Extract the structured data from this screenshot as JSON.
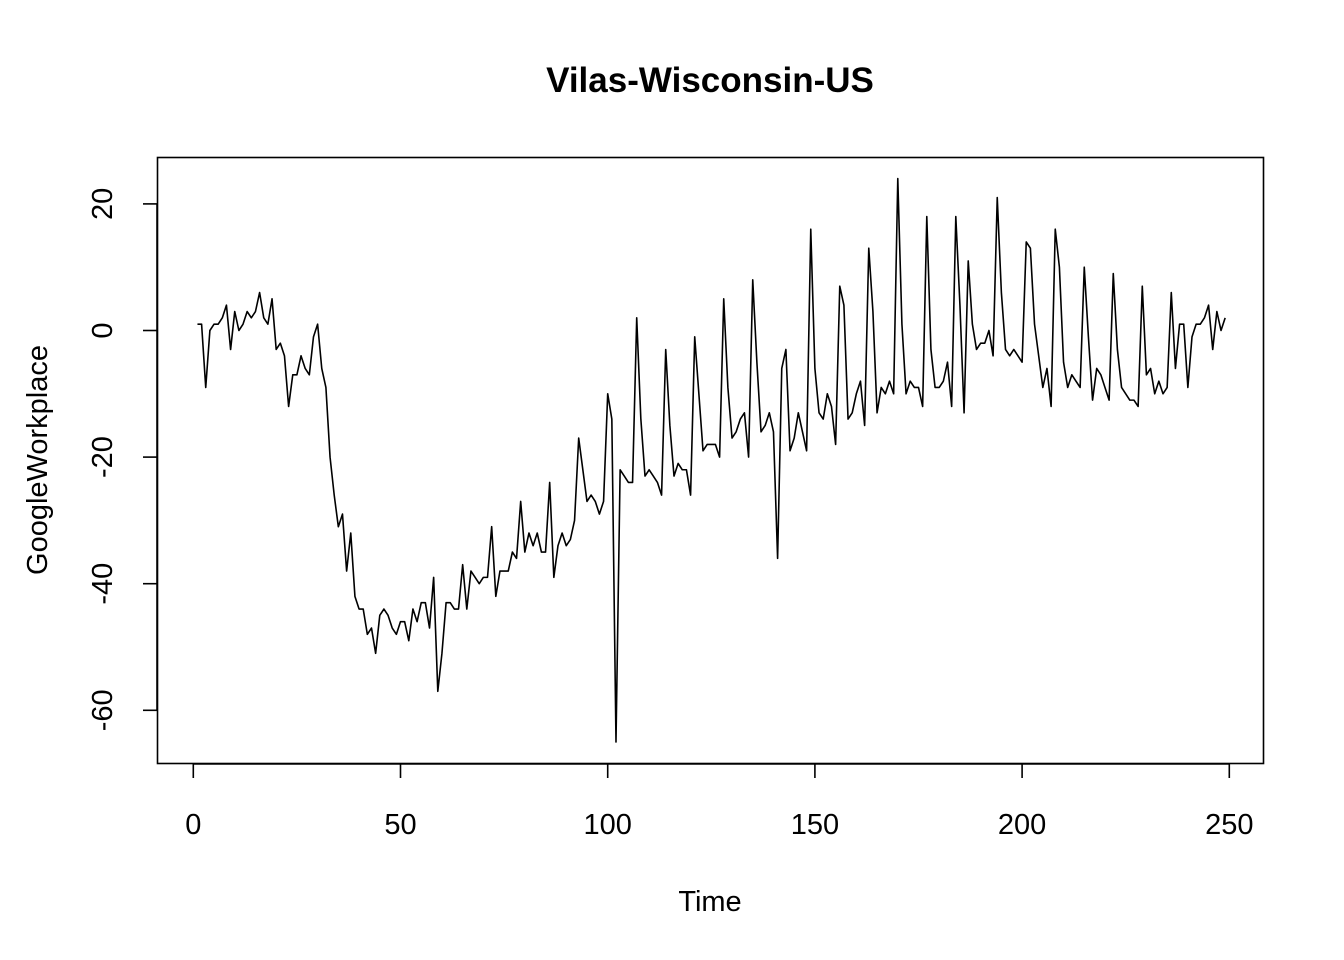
{
  "chart_data": {
    "type": "line",
    "title": "Vilas-Wisconsin-US",
    "xlabel": "Time",
    "ylabel": "GoogleWorkplace",
    "xlim": [
      1,
      248
    ],
    "ylim": [
      -65,
      24
    ],
    "x_ticks": [
      0,
      50,
      100,
      150,
      200,
      250
    ],
    "y_ticks": [
      -60,
      -40,
      -20,
      0,
      20
    ],
    "grid": false,
    "series": [
      {
        "values": [
          1,
          1,
          -9,
          0,
          1,
          1,
          2,
          4,
          -3,
          3,
          0,
          1,
          3,
          2,
          3,
          6,
          2,
          1,
          5,
          -3,
          -2,
          -4,
          -12,
          -7,
          -7,
          -4,
          -6,
          -7,
          -1,
          1,
          -6,
          -9,
          -20,
          -26,
          -31,
          -29,
          -38,
          -32,
          -42,
          -44,
          -44,
          -48,
          -47,
          -51,
          -45,
          -44,
          -45,
          -47,
          -48,
          -46,
          -46,
          -49,
          -44,
          -46,
          -43,
          -43,
          -47,
          -39,
          -57,
          -51,
          -43,
          -43,
          -44,
          -44,
          -37,
          -44,
          -38,
          -39,
          -40,
          -39,
          -39,
          -31,
          -42,
          -38,
          -38,
          -38,
          -35,
          -36,
          -27,
          -35,
          -32,
          -34,
          -32,
          -35,
          -35,
          -24,
          -39,
          -34,
          -32,
          -34,
          -33,
          -30,
          -17,
          -22,
          -27,
          -26,
          -27,
          -29,
          -27,
          -10,
          -14,
          -65,
          -22,
          -23,
          -24,
          -24,
          2,
          -14,
          -23,
          -22,
          -23,
          -24,
          -26,
          -3,
          -15,
          -23,
          -21,
          -22,
          -22,
          -26,
          -1,
          -10,
          -19,
          -18,
          -18,
          -18,
          -20,
          5,
          -9,
          -17,
          -16,
          -14,
          -13,
          -20,
          8,
          -5,
          -16,
          -15,
          -13,
          -16,
          -36,
          -6,
          -3,
          -19,
          -17,
          -13,
          -16,
          -19,
          16,
          -6,
          -13,
          -14,
          -10,
          -12,
          -18,
          7,
          4,
          -14,
          -13,
          -10,
          -8,
          -15,
          13,
          3,
          -13,
          -9,
          -10,
          -8,
          -10,
          24,
          1,
          -10,
          -8,
          -9,
          -9,
          -12,
          18,
          -3,
          -9,
          -9,
          -8,
          -5,
          -12,
          18,
          4,
          -13,
          11,
          1,
          -3,
          -2,
          -2,
          0,
          -4,
          21,
          6,
          -3,
          -4,
          -3,
          -4,
          -5,
          14,
          13,
          1,
          -4,
          -9,
          -6,
          -12,
          16,
          10,
          -5,
          -9,
          -7,
          -8,
          -9,
          10,
          -1,
          -11,
          -6,
          -7,
          -9,
          -11,
          9,
          -3,
          -9,
          -10,
          -11,
          -11,
          -12,
          7,
          -7,
          -6,
          -10,
          -8,
          -10,
          -9,
          6,
          -6,
          1,
          1,
          -9,
          -1,
          1,
          1,
          2,
          4,
          -3,
          3,
          0,
          2
        ]
      }
    ]
  }
}
